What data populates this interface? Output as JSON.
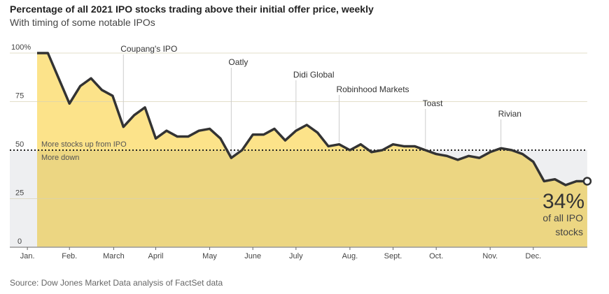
{
  "chart_data": {
    "type": "area",
    "title": "Percentage of all 2021 IPO stocks trading above their initial offer price, weekly",
    "subtitle": "With timing of some notable IPOs",
    "source": "Source: Dow Jones Market Data analysis of FactSet data",
    "ylim": [
      0,
      100
    ],
    "y_ticks": [
      "100%",
      "75",
      "50",
      "25",
      "0"
    ],
    "y_tick_values": [
      100,
      75,
      50,
      25,
      0
    ],
    "x_unit": "week of 2021",
    "x_ticks": [
      {
        "label": "Jan.",
        "week": -0.9
      },
      {
        "label": "Feb.",
        "week": 3.0
      },
      {
        "label": "March",
        "week": 7.1
      },
      {
        "label": "April",
        "week": 11.0
      },
      {
        "label": "May",
        "week": 16.0
      },
      {
        "label": "June",
        "week": 20.0
      },
      {
        "label": "July",
        "week": 24.0
      },
      {
        "label": "Aug.",
        "week": 29.0
      },
      {
        "label": "Sept.",
        "week": 33.0
      },
      {
        "label": "Oct.",
        "week": 37.0
      },
      {
        "label": "Nov.",
        "week": 42.0
      },
      {
        "label": "Dec.",
        "week": 46.0
      }
    ],
    "values": [
      100,
      100,
      87,
      74,
      83,
      87,
      81,
      78,
      62,
      68,
      72,
      56,
      60,
      57,
      57,
      60,
      61,
      56,
      46,
      50,
      58,
      58,
      61,
      55,
      60,
      63,
      59,
      52,
      53,
      50,
      53,
      49,
      50,
      53,
      52,
      52,
      50,
      48,
      47,
      45,
      47,
      46,
      49,
      51,
      50,
      48,
      44,
      34,
      35,
      32,
      34,
      34
    ],
    "threshold": {
      "value": 50,
      "above_label": "More stocks up from IPO",
      "below_label": "More down"
    },
    "annotations": [
      {
        "label": "Coupang's IPO",
        "week": 8
      },
      {
        "label": "Oatly",
        "week": 18
      },
      {
        "label": "Didi Global",
        "week": 24
      },
      {
        "label": "Robinhood Markets",
        "week": 28
      },
      {
        "label": "Toast",
        "week": 36
      },
      {
        "label": "Rivian",
        "week": 43
      }
    ],
    "callout": {
      "value": "34%",
      "line1": "of all IPO",
      "line2": "stocks"
    },
    "colors": {
      "above": "#FCE38A",
      "below": "#ECD682",
      "line": "#333333",
      "shade": "#EEEFF1",
      "grid": "#D8D2B4"
    }
  }
}
